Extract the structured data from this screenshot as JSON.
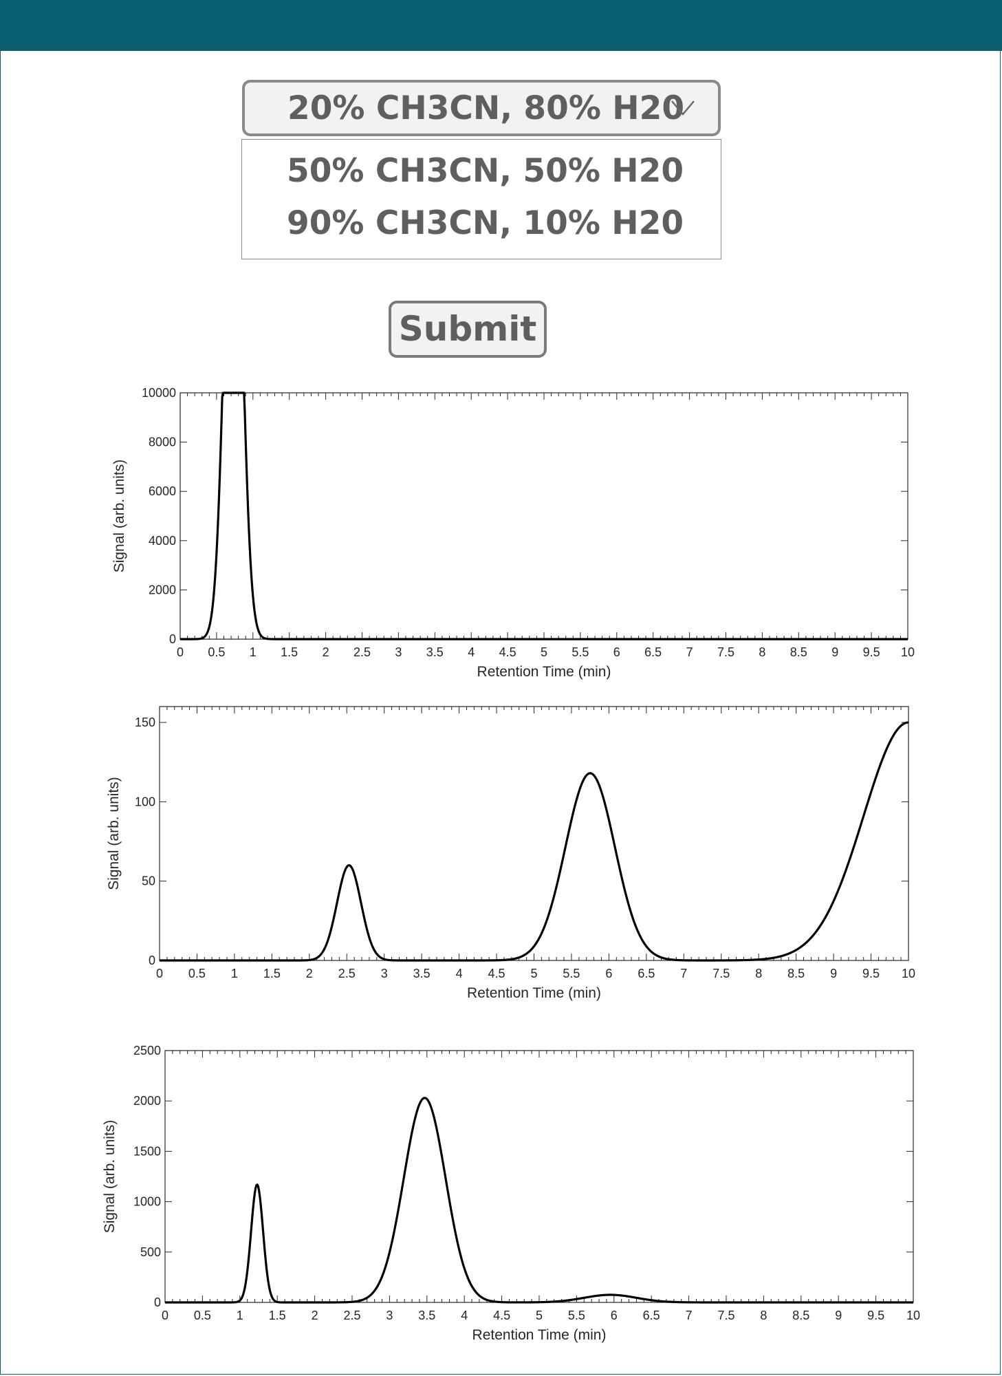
{
  "form": {
    "selected_option": "20% CH3CN, 80% H20",
    "options": [
      "50% CH3CN, 50% H20",
      "90% CH3CN, 10% H20"
    ],
    "submit_label": "Submit"
  },
  "icons": {
    "dropdown": "chevron-down-icon"
  },
  "chart_data": [
    {
      "type": "line",
      "xlabel": "Retention Time (min)",
      "ylabel": "Signal (arb. units)",
      "xlim": [
        0,
        10
      ],
      "ylim": [
        0,
        10000
      ],
      "xticks": [
        "0",
        "0.5",
        "1",
        "1.5",
        "2",
        "2.5",
        "3",
        "3.5",
        "4",
        "4.5",
        "5",
        "5.5",
        "6",
        "6.5",
        "7",
        "7.5",
        "8",
        "8.5",
        "9",
        "9.5",
        "10"
      ],
      "yticks": [
        "0",
        "2000",
        "4000",
        "6000",
        "8000",
        "10000"
      ],
      "peaks": [
        {
          "center": 0.73,
          "height": 10000,
          "width": 0.12,
          "note": "clipped at 10000"
        }
      ]
    },
    {
      "type": "line",
      "xlabel": "Retention Time (min)",
      "ylabel": "Signal (arb. units)",
      "xlim": [
        0,
        10
      ],
      "ylim": [
        0,
        160
      ],
      "xticks": [
        "0",
        "0.5",
        "1",
        "1.5",
        "2",
        "2.5",
        "3",
        "3.5",
        "4",
        "4.5",
        "5",
        "5.5",
        "6",
        "6.5",
        "7",
        "7.5",
        "8",
        "8.5",
        "9",
        "9.5",
        "10"
      ],
      "yticks": [
        "0",
        "50",
        "100",
        "150"
      ],
      "peaks": [
        {
          "center": 2.53,
          "height": 60,
          "width": 0.16
        },
        {
          "center": 5.75,
          "height": 118,
          "width": 0.33
        },
        {
          "center": 10.0,
          "height": 150,
          "width": 0.6
        }
      ]
    },
    {
      "type": "line",
      "xlabel": "Retention Time (min)",
      "ylabel": "Signal (arb. units)",
      "xlim": [
        0,
        10
      ],
      "ylim": [
        0,
        2500
      ],
      "xticks": [
        "0",
        "0.5",
        "1",
        "1.5",
        "2",
        "2.5",
        "3",
        "3.5",
        "4",
        "4.5",
        "5",
        "5.5",
        "6",
        "6.5",
        "7",
        "7.5",
        "8",
        "8.5",
        "9",
        "9.5",
        "10"
      ],
      "yticks": [
        "0",
        "500",
        "1000",
        "1500",
        "2000",
        "2500"
      ],
      "peaks": [
        {
          "center": 1.23,
          "height": 1170,
          "width": 0.08
        },
        {
          "center": 3.47,
          "height": 2030,
          "width": 0.28
        },
        {
          "center": 5.95,
          "height": 75,
          "width": 0.35
        }
      ]
    }
  ]
}
